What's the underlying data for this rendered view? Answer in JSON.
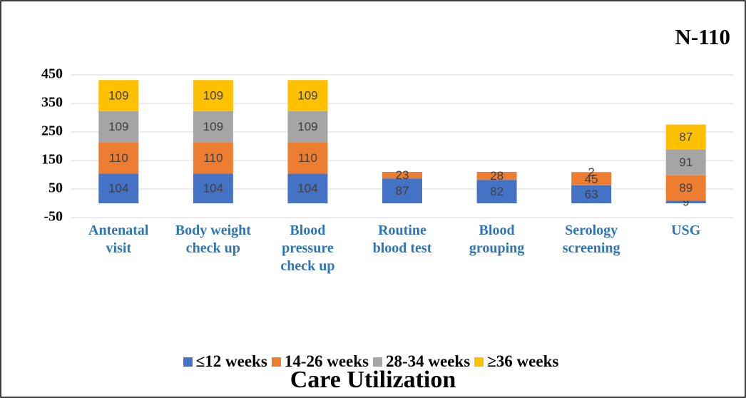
{
  "chart_data": {
    "type": "stacked_bar",
    "title": "Care Utilization",
    "annotation": "N-110",
    "categories": [
      "Antenatal visit",
      "Body weight check up",
      "Blood pressure check up",
      "Routine blood test",
      "Blood grouping",
      "Serology screening",
      "USG"
    ],
    "series": [
      {
        "name": "≤12 weeks",
        "color": "#4472c4",
        "values": [
          104,
          104,
          104,
          87,
          82,
          63,
          9
        ]
      },
      {
        "name": "14-26 weeks",
        "color": "#ed7d31",
        "values": [
          110,
          110,
          110,
          23,
          28,
          45,
          89
        ]
      },
      {
        "name": "28-34 weeks",
        "color": "#a5a5a5",
        "values": [
          109,
          109,
          109,
          null,
          null,
          2,
          91
        ]
      },
      {
        "name": "≥36 weeks",
        "color": "#ffc000",
        "values": [
          109,
          109,
          109,
          null,
          null,
          null,
          87
        ]
      }
    ],
    "ylim": [
      -50,
      450
    ],
    "yticks": [
      -50,
      50,
      150,
      250,
      350,
      450
    ],
    "grid": true,
    "legend": "bottom"
  }
}
